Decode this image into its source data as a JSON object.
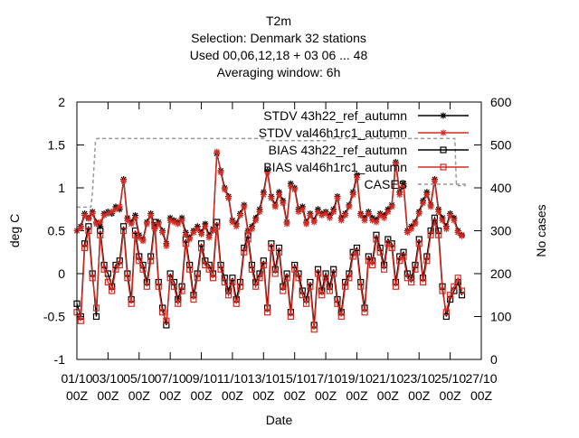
{
  "chart_data": {
    "type": "line",
    "title_lines": [
      "T2m",
      "Selection: Denmark      32 stations",
      "Used  00,06,12,18  + 03 06 ... 48",
      "Averaging window:  6h"
    ],
    "xlabel": "Date",
    "ylabel": "deg C",
    "y2label": "No cases",
    "xlim": [
      0,
      26
    ],
    "ylim": [
      -1,
      2
    ],
    "y2lim": [
      0,
      600
    ],
    "x_ticks": [
      {
        "x": 0,
        "line1": "01/10",
        "line2": "00Z"
      },
      {
        "x": 2,
        "line1": "03/10",
        "line2": "00Z"
      },
      {
        "x": 4,
        "line1": "05/10",
        "line2": "00Z"
      },
      {
        "x": 6,
        "line1": "07/10",
        "line2": "00Z"
      },
      {
        "x": 8,
        "line1": "09/10",
        "line2": "00Z"
      },
      {
        "x": 10,
        "line1": "11/10",
        "line2": "00Z"
      },
      {
        "x": 12,
        "line1": "13/10",
        "line2": "00Z"
      },
      {
        "x": 14,
        "line1": "15/10",
        "line2": "00Z"
      },
      {
        "x": 16,
        "line1": "17/10",
        "line2": "00Z"
      },
      {
        "x": 18,
        "line1": "19/10",
        "line2": "00Z"
      },
      {
        "x": 20,
        "line1": "21/10",
        "line2": "00Z"
      },
      {
        "x": 22,
        "line1": "23/10",
        "line2": "00Z"
      },
      {
        "x": 24,
        "line1": "25/10",
        "line2": "00Z"
      },
      {
        "x": 26,
        "line1": "27/10",
        "line2": "00Z"
      }
    ],
    "y_ticks": [
      {
        "v": -1,
        "label": "-1"
      },
      {
        "v": -0.5,
        "label": "-0.5"
      },
      {
        "v": 0,
        "label": "0"
      },
      {
        "v": 0.5,
        "label": "0.5"
      },
      {
        "v": 1,
        "label": "1"
      },
      {
        "v": 1.5,
        "label": "1.5"
      },
      {
        "v": 2,
        "label": "2"
      }
    ],
    "y2_ticks": [
      {
        "v": 0,
        "label": "0"
      },
      {
        "v": 100,
        "label": "100"
      },
      {
        "v": 200,
        "label": "200"
      },
      {
        "v": 300,
        "label": "300"
      },
      {
        "v": 400,
        "label": "400"
      },
      {
        "v": 500,
        "label": "500"
      },
      {
        "v": 600,
        "label": "600"
      }
    ],
    "grid": false,
    "legend_position": "top-right",
    "series": [
      {
        "name": "STDV 43h22_ref_autumn",
        "color": "#000000",
        "marker": "star",
        "axis": "y",
        "x": [
          0.0,
          0.25,
          0.5,
          0.75,
          1.0,
          1.25,
          1.5,
          1.75,
          2.0,
          2.25,
          2.5,
          2.75,
          3.0,
          3.25,
          3.5,
          3.75,
          4.0,
          4.25,
          4.5,
          4.75,
          5.0,
          5.25,
          5.5,
          5.75,
          6.0,
          6.25,
          6.5,
          6.75,
          7.0,
          7.25,
          7.5,
          7.75,
          8.0,
          8.25,
          8.5,
          8.75,
          9.0,
          9.25,
          9.5,
          9.75,
          10.0,
          10.25,
          10.5,
          10.75,
          11.0,
          11.25,
          11.5,
          11.75,
          12.0,
          12.25,
          12.5,
          12.75,
          13.0,
          13.25,
          13.5,
          13.75,
          14.0,
          14.25,
          14.5,
          14.75,
          15.0,
          15.25,
          15.5,
          15.75,
          16.0,
          16.25,
          16.5,
          16.75,
          17.0,
          17.25,
          17.5,
          17.75,
          18.0,
          18.25,
          18.5,
          18.75,
          19.0,
          19.25,
          19.5,
          19.75,
          20.0,
          20.25,
          20.5,
          20.75,
          21.0,
          21.25,
          21.5,
          21.75,
          22.0,
          22.25,
          22.5,
          22.75,
          23.0,
          23.25,
          23.5,
          23.75,
          24.0,
          24.25,
          24.5,
          24.75
        ],
        "y": [
          0.5,
          0.55,
          0.7,
          0.65,
          0.72,
          0.6,
          0.55,
          0.7,
          0.72,
          0.7,
          0.78,
          0.75,
          1.1,
          0.65,
          0.6,
          0.68,
          0.45,
          0.4,
          0.6,
          0.7,
          0.55,
          0.6,
          0.5,
          0.35,
          0.65,
          0.62,
          0.6,
          0.65,
          0.48,
          0.42,
          0.5,
          0.55,
          0.48,
          0.58,
          0.45,
          0.52,
          1.4,
          1.2,
          1.0,
          0.9,
          0.62,
          0.58,
          0.7,
          0.8,
          0.5,
          0.55,
          0.65,
          0.75,
          0.95,
          1.2,
          0.9,
          0.8,
          0.95,
          0.85,
          0.6,
          1.05,
          1.0,
          0.75,
          0.78,
          0.6,
          0.7,
          0.62,
          0.75,
          0.7,
          0.72,
          0.68,
          0.75,
          0.9,
          0.65,
          0.7,
          0.8,
          0.95,
          1.15,
          0.7,
          0.65,
          0.72,
          0.65,
          0.63,
          0.7,
          0.68,
          0.75,
          0.8,
          1.3,
          0.95,
          1.05,
          0.5,
          0.55,
          0.6,
          0.72,
          0.85,
          0.95,
          0.8,
          1.1,
          0.75,
          0.65,
          0.55,
          0.7,
          0.65,
          0.5,
          0.45
        ]
      },
      {
        "name": "STDV val46h1rc1_autumn",
        "color": "#d62a20",
        "marker": "star",
        "axis": "y",
        "x": [
          0.0,
          0.25,
          0.5,
          0.75,
          1.0,
          1.25,
          1.5,
          1.75,
          2.0,
          2.25,
          2.5,
          2.75,
          3.0,
          3.25,
          3.5,
          3.75,
          4.0,
          4.25,
          4.5,
          4.75,
          5.0,
          5.25,
          5.5,
          5.75,
          6.0,
          6.25,
          6.5,
          6.75,
          7.0,
          7.25,
          7.5,
          7.75,
          8.0,
          8.25,
          8.5,
          8.75,
          9.0,
          9.25,
          9.5,
          9.75,
          10.0,
          10.25,
          10.5,
          10.75,
          11.0,
          11.25,
          11.5,
          11.75,
          12.0,
          12.25,
          12.5,
          12.75,
          13.0,
          13.25,
          13.5,
          13.75,
          14.0,
          14.25,
          14.5,
          14.75,
          15.0,
          15.25,
          15.5,
          15.75,
          16.0,
          16.25,
          16.5,
          16.75,
          17.0,
          17.25,
          17.5,
          17.75,
          18.0,
          18.25,
          18.5,
          18.75,
          19.0,
          19.25,
          19.5,
          19.75,
          20.0,
          20.25,
          20.5,
          20.75,
          21.0,
          21.25,
          21.5,
          21.75,
          22.0,
          22.25,
          22.5,
          22.75,
          23.0,
          23.25,
          23.5,
          23.75,
          24.0,
          24.25,
          24.5,
          24.75
        ],
        "y": [
          0.5,
          0.53,
          0.68,
          0.64,
          0.7,
          0.58,
          0.6,
          0.68,
          0.7,
          0.72,
          0.75,
          0.78,
          1.08,
          0.62,
          0.58,
          0.65,
          0.42,
          0.38,
          0.58,
          0.68,
          0.52,
          0.58,
          0.48,
          0.32,
          0.62,
          0.6,
          0.58,
          0.62,
          0.45,
          0.4,
          0.48,
          0.52,
          0.46,
          0.55,
          0.42,
          0.5,
          1.42,
          1.18,
          0.98,
          0.88,
          0.6,
          0.55,
          0.68,
          0.78,
          0.48,
          0.52,
          0.62,
          0.72,
          0.92,
          1.18,
          0.88,
          0.78,
          0.92,
          0.82,
          0.58,
          1.02,
          0.98,
          0.72,
          0.75,
          0.58,
          0.68,
          0.6,
          0.72,
          0.68,
          0.7,
          0.65,
          0.72,
          0.88,
          0.62,
          0.68,
          0.78,
          0.92,
          1.12,
          0.68,
          0.62,
          0.7,
          0.62,
          0.6,
          0.68,
          0.65,
          0.72,
          0.78,
          1.28,
          0.92,
          1.02,
          0.48,
          0.52,
          0.58,
          0.7,
          0.82,
          0.92,
          0.78,
          1.08,
          0.72,
          0.62,
          0.52,
          0.68,
          0.62,
          0.48,
          0.44
        ]
      },
      {
        "name": "BIAS 43h22_ref_autumn",
        "color": "#000000",
        "marker": "open-square",
        "axis": "y",
        "x": [
          0.0,
          0.25,
          0.5,
          0.75,
          1.0,
          1.25,
          1.5,
          1.75,
          2.0,
          2.25,
          2.5,
          2.75,
          3.0,
          3.25,
          3.5,
          3.75,
          4.0,
          4.25,
          4.5,
          4.75,
          5.0,
          5.25,
          5.5,
          5.75,
          6.0,
          6.25,
          6.5,
          6.75,
          7.0,
          7.25,
          7.5,
          7.75,
          8.0,
          8.25,
          8.5,
          8.75,
          9.0,
          9.25,
          9.5,
          9.75,
          10.0,
          10.25,
          10.5,
          10.75,
          11.0,
          11.25,
          11.5,
          11.75,
          12.0,
          12.25,
          12.5,
          12.75,
          13.0,
          13.25,
          13.5,
          13.75,
          14.0,
          14.25,
          14.5,
          14.75,
          15.0,
          15.25,
          15.5,
          15.75,
          16.0,
          16.25,
          16.5,
          16.75,
          17.0,
          17.25,
          17.5,
          17.75,
          18.0,
          18.25,
          18.5,
          18.75,
          19.0,
          19.25,
          19.5,
          19.75,
          20.0,
          20.25,
          20.5,
          20.75,
          21.0,
          21.25,
          21.5,
          21.75,
          22.0,
          22.25,
          22.5,
          22.75,
          23.0,
          23.25,
          23.5,
          23.75,
          24.0,
          24.25,
          24.5,
          24.75
        ],
        "y": [
          -0.35,
          -0.5,
          0.35,
          0.55,
          0.0,
          -0.5,
          0.5,
          0.1,
          0.0,
          -0.15,
          0.1,
          0.15,
          0.55,
          0.0,
          -0.3,
          0.5,
          0.2,
          0.1,
          -0.1,
          0.2,
          0.6,
          -0.1,
          -0.4,
          -0.6,
          0.0,
          -0.1,
          -0.3,
          -0.15,
          0.4,
          0.1,
          -0.25,
          0.0,
          0.35,
          0.15,
          0.1,
          0.0,
          0.6,
          0.1,
          -0.05,
          -0.2,
          -0.05,
          -0.3,
          -0.1,
          0.3,
          0.45,
          0.1,
          -0.1,
          0.0,
          0.15,
          -0.4,
          0.35,
          0.05,
          0.3,
          -0.15,
          0.0,
          -0.45,
          0.1,
          0.0,
          -0.2,
          -0.3,
          -0.1,
          -0.6,
          0.05,
          -0.2,
          0.0,
          -0.15,
          0.05,
          -0.3,
          -0.45,
          -0.1,
          0.0,
          0.25,
          0.3,
          -0.1,
          -0.4,
          0.2,
          0.15,
          0.45,
          0.3,
          0.1,
          0.4,
          0.35,
          -0.1,
          0.2,
          0.25,
          0.0,
          -0.05,
          0.1,
          0.4,
          -0.05,
          0.2,
          0.5,
          0.65,
          0.5,
          -0.15,
          -0.5,
          -0.3,
          -0.2,
          -0.1,
          -0.25
        ]
      },
      {
        "name": "BIAS val46h1rc1_autumn",
        "color": "#d62a20",
        "marker": "open-square",
        "axis": "y",
        "x": [
          0.0,
          0.25,
          0.5,
          0.75,
          1.0,
          1.25,
          1.5,
          1.75,
          2.0,
          2.25,
          2.5,
          2.75,
          3.0,
          3.25,
          3.5,
          3.75,
          4.0,
          4.25,
          4.5,
          4.75,
          5.0,
          5.25,
          5.5,
          5.75,
          6.0,
          6.25,
          6.5,
          6.75,
          7.0,
          7.25,
          7.5,
          7.75,
          8.0,
          8.25,
          8.5,
          8.75,
          9.0,
          9.25,
          9.5,
          9.75,
          10.0,
          10.25,
          10.5,
          10.75,
          11.0,
          11.25,
          11.5,
          11.75,
          12.0,
          12.25,
          12.5,
          12.75,
          13.0,
          13.25,
          13.5,
          13.75,
          14.0,
          14.25,
          14.5,
          14.75,
          15.0,
          15.25,
          15.5,
          15.75,
          16.0,
          16.25,
          16.5,
          16.75,
          17.0,
          17.25,
          17.5,
          17.75,
          18.0,
          18.25,
          18.5,
          18.75,
          19.0,
          19.25,
          19.5,
          19.75,
          20.0,
          20.25,
          20.5,
          20.75,
          21.0,
          21.25,
          21.5,
          21.75,
          22.0,
          22.25,
          22.5,
          22.75,
          23.0,
          23.25,
          23.5,
          23.75,
          24.0,
          24.25,
          24.5,
          24.75
        ],
        "y": [
          -0.45,
          -0.55,
          0.3,
          0.5,
          -0.05,
          -0.4,
          0.45,
          0.05,
          -0.1,
          -0.2,
          0.05,
          0.1,
          0.5,
          -0.05,
          -0.35,
          0.45,
          0.15,
          0.05,
          -0.15,
          0.15,
          0.55,
          -0.15,
          -0.45,
          -0.55,
          -0.05,
          -0.15,
          -0.35,
          -0.2,
          0.35,
          0.05,
          -0.3,
          -0.05,
          0.3,
          0.1,
          0.05,
          -0.05,
          0.55,
          0.05,
          -0.1,
          -0.25,
          -0.1,
          -0.35,
          -0.15,
          0.25,
          0.4,
          0.05,
          -0.15,
          -0.05,
          0.1,
          -0.45,
          0.3,
          0.0,
          0.25,
          -0.2,
          -0.05,
          -0.5,
          0.05,
          -0.05,
          -0.25,
          -0.35,
          -0.15,
          -0.65,
          0.0,
          -0.25,
          -0.05,
          -0.2,
          0.0,
          -0.35,
          -0.5,
          -0.15,
          -0.05,
          0.2,
          0.25,
          -0.15,
          -0.45,
          0.15,
          0.1,
          0.4,
          0.25,
          0.05,
          0.35,
          0.3,
          -0.15,
          0.15,
          0.2,
          -0.05,
          -0.1,
          0.05,
          0.35,
          -0.1,
          0.15,
          0.45,
          0.6,
          0.45,
          -0.2,
          -0.45,
          -0.25,
          -0.15,
          -0.05,
          -0.2
        ]
      },
      {
        "name": "CASES",
        "color": "#999999",
        "marker": "none",
        "dash": true,
        "axis": "y2",
        "x": [
          0.0,
          0.5,
          0.9,
          1.0,
          1.2,
          1.3,
          12.0,
          12.1,
          16.0,
          16.2,
          16.3,
          24.3,
          24.4,
          25.0
        ],
        "y": [
          355,
          355,
          355,
          390,
          510,
          515,
          515,
          510,
          510,
          520,
          515,
          515,
          405,
          405
        ]
      }
    ]
  }
}
